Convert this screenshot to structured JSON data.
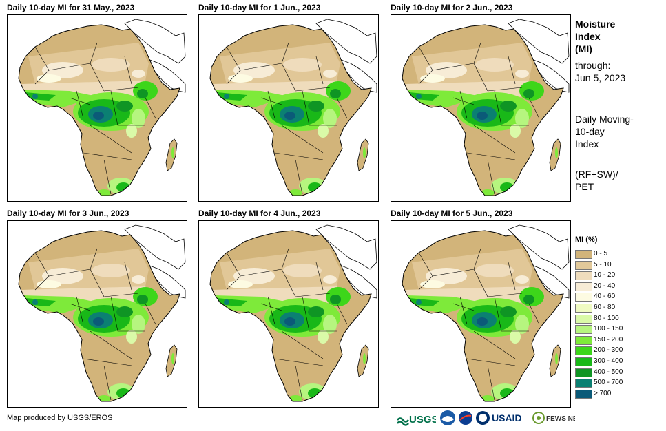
{
  "panels": [
    {
      "title": "Daily 10-day MI for 31 May., 2023"
    },
    {
      "title": "Daily 10-day MI for 1 Jun., 2023"
    },
    {
      "title": "Daily 10-day MI for 2 Jun., 2023"
    },
    {
      "title": "Daily 10-day MI for 3 Jun., 2023"
    },
    {
      "title": "Daily 10-day MI for 4 Jun., 2023"
    },
    {
      "title": "Daily 10-day MI for 5 Jun., 2023"
    }
  ],
  "side": {
    "title_line1": "Moisture",
    "title_line2": "Index",
    "title_line3": "(MI)",
    "through_label": "through:",
    "through_date": "Jun 5, 2023",
    "desc_line1": "Daily Moving-",
    "desc_line2": "10-day",
    "desc_line3": "Index",
    "formula_line1": "(RF+SW)/",
    "formula_line2": "PET"
  },
  "legend": {
    "title": "MI (%)",
    "items": [
      {
        "label": "0 - 5",
        "color": "#d2b47a"
      },
      {
        "label": "5 - 10",
        "color": "#e2c99a"
      },
      {
        "label": "10 - 20",
        "color": "#efdcbc"
      },
      {
        "label": "20 - 40",
        "color": "#f7ecd6"
      },
      {
        "label": "40 - 60",
        "color": "#fdfbe2"
      },
      {
        "label": "60 - 80",
        "color": "#f0fbc2"
      },
      {
        "label": "80 - 100",
        "color": "#dafaa8"
      },
      {
        "label": "100 - 150",
        "color": "#b6f57f"
      },
      {
        "label": "150 - 200",
        "color": "#7eea3a"
      },
      {
        "label": "200 - 300",
        "color": "#3dd61a"
      },
      {
        "label": "300 - 400",
        "color": "#19b818"
      },
      {
        "label": "400 - 500",
        "color": "#0f9524"
      },
      {
        "label": "500 - 700",
        "color": "#0b8072"
      },
      {
        "label": "> 700",
        "color": "#0b5a78"
      }
    ]
  },
  "credit": "Map produced by USGS/EROS",
  "logos": {
    "usgs": "USGS",
    "usaid": "USAID",
    "fews": "FEWS NET"
  }
}
